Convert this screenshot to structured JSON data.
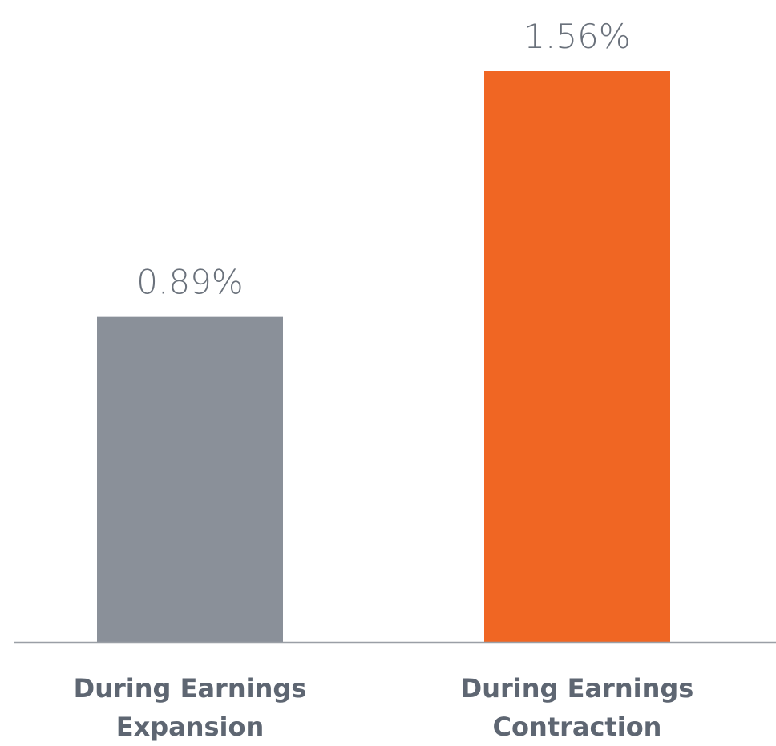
{
  "chart_data": {
    "type": "bar",
    "categories": [
      "During Earnings Expansion",
      "During Earnings Contraction"
    ],
    "values": [
      0.89,
      1.56
    ],
    "value_labels": [
      "0.89%",
      "1.56%"
    ],
    "colors": [
      "#8a9099",
      "#f06623"
    ]
  }
}
